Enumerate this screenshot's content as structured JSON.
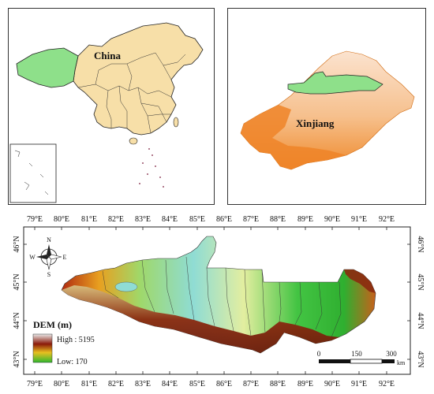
{
  "china_panel": {
    "label": "China"
  },
  "xinjiang_panel": {
    "label": "Xinjiang"
  },
  "dem_panel": {
    "longitudes": [
      "79°E",
      "80°E",
      "81°E",
      "82°E",
      "83°E",
      "84°E",
      "85°E",
      "86°E",
      "87°E",
      "88°E",
      "89°E",
      "90°E",
      "91°E",
      "92°E"
    ],
    "latitudes": [
      "46°N",
      "45°N",
      "44°N",
      "43°N"
    ],
    "compass": {
      "north": "N",
      "south": "S",
      "east": "E",
      "west": "W"
    },
    "legend": {
      "title": "DEM (m)",
      "high": "High : 5195",
      "low": "Low: 170"
    },
    "scale_bar": {
      "ticks": [
        "0",
        "150",
        "300"
      ],
      "unit": "km"
    }
  },
  "colors": {
    "china_fill": "#f7dfa8",
    "highlight_green": "#8ee08a",
    "xinjiang_orange": "#f08a2c",
    "dem_high": "#8b1a0a",
    "dem_low": "#2fb82f"
  }
}
